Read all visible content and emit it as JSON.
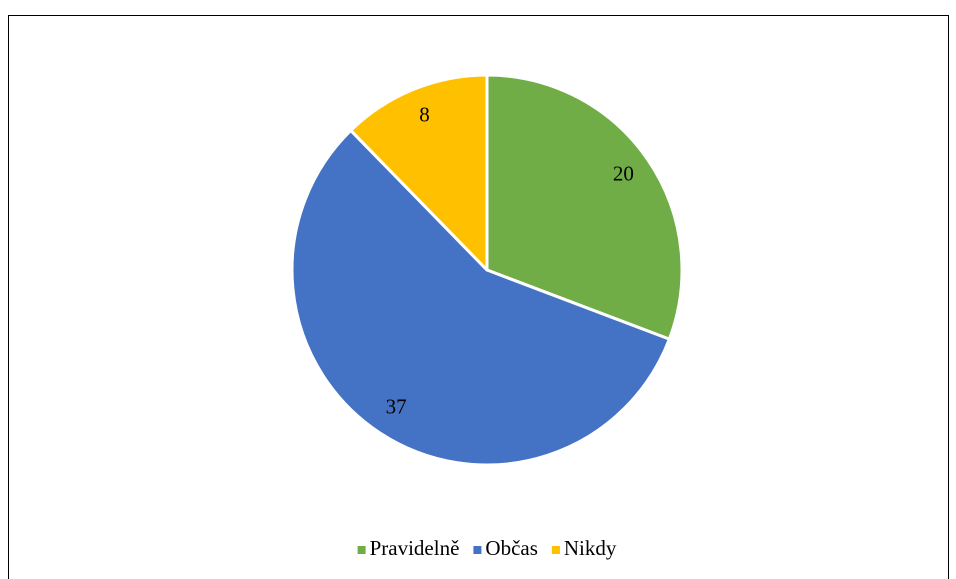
{
  "chart_data": {
    "type": "pie",
    "categories": [
      "Pravidelně",
      "Občas",
      "Nikdy"
    ],
    "values": [
      20,
      37,
      8
    ],
    "colors": [
      "#70ad47",
      "#4472c4",
      "#ffc000"
    ],
    "legend": "bottom"
  }
}
